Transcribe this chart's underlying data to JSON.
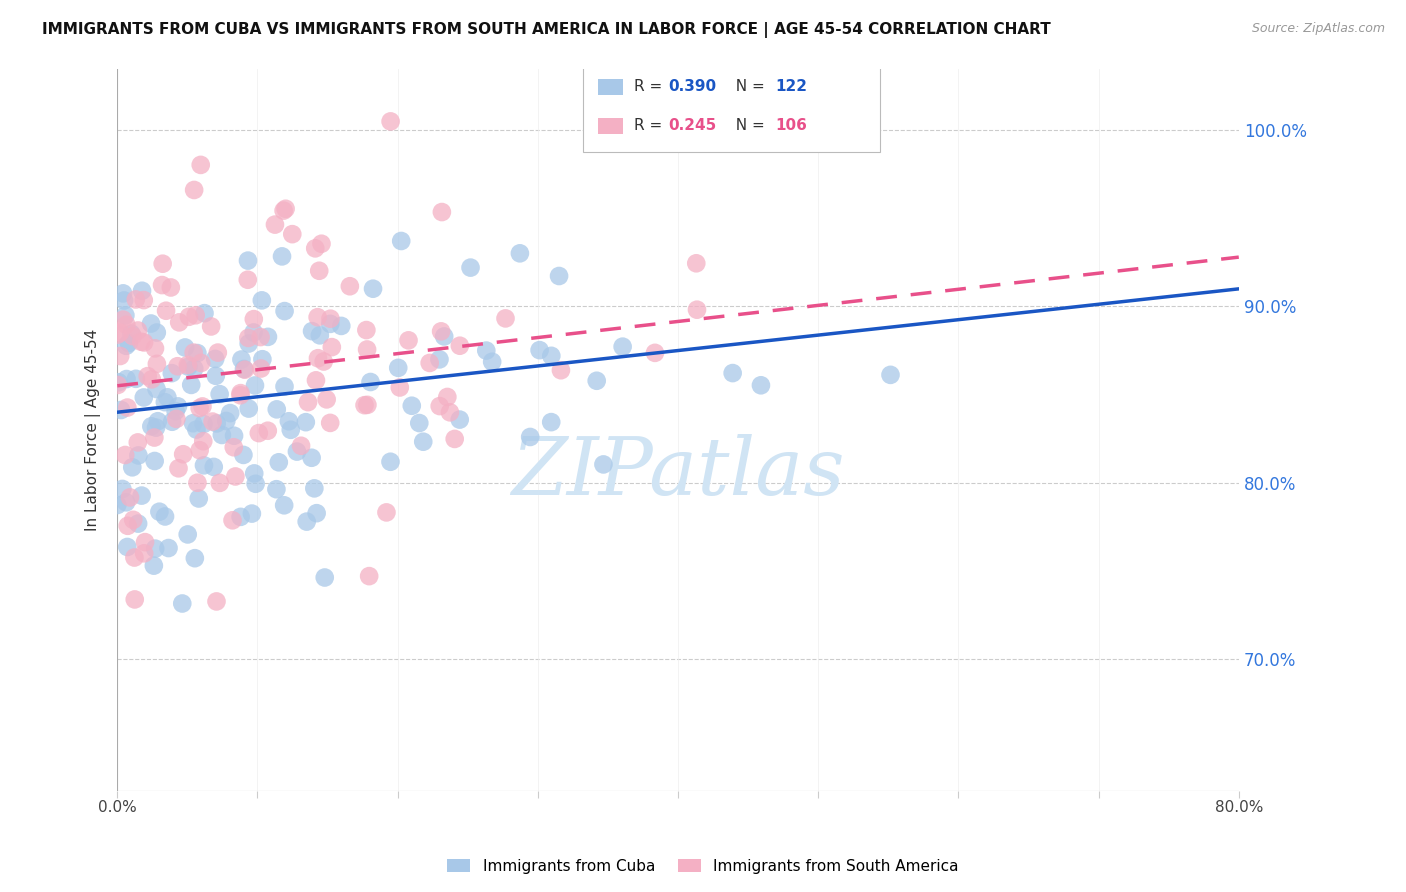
{
  "title": "IMMIGRANTS FROM CUBA VS IMMIGRANTS FROM SOUTH AMERICA IN LABOR FORCE | AGE 45-54 CORRELATION CHART",
  "source": "Source: ZipAtlas.com",
  "ylabel": "In Labor Force | Age 45-54",
  "ytick_labels": [
    "100.0%",
    "90.0%",
    "80.0%",
    "70.0%"
  ],
  "ytick_values": [
    1.0,
    0.9,
    0.8,
    0.7
  ],
  "xlim": [
    0.0,
    0.8
  ],
  "ylim": [
    0.625,
    1.035
  ],
  "R_cuba": 0.39,
  "N_cuba": 122,
  "R_south": 0.245,
  "N_south": 106,
  "legend_label_cuba": "Immigrants from Cuba",
  "legend_label_south": "Immigrants from South America",
  "color_cuba": "#a8c8e8",
  "color_south": "#f4b0c4",
  "line_color_cuba": "#1a56c4",
  "line_color_south": "#e8508a",
  "watermark": "ZIPatlas",
  "watermark_color": "#d0e4f4",
  "background_color": "#ffffff",
  "trend_cuba_x0": 0.0,
  "trend_cuba_y0": 0.84,
  "trend_cuba_x1": 0.8,
  "trend_cuba_y1": 0.91,
  "trend_south_x0": 0.0,
  "trend_south_y0": 0.855,
  "trend_south_x1": 0.8,
  "trend_south_y1": 0.928
}
